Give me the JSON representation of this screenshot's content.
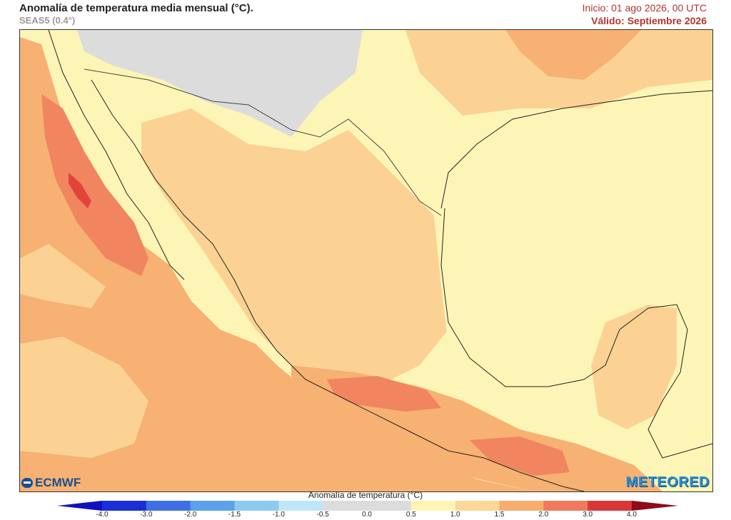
{
  "header": {
    "title": "Anomalía de temperatura media mensual (°C).",
    "model": "SEAS5 (0.4°)",
    "init": "Inicio: 01 ago 2026, 00 UTC",
    "valid": "Válido: Septiembre 2026"
  },
  "logos": {
    "left": "ECMWF",
    "right": "METEORED"
  },
  "legend": {
    "title": "Anomalía de temperatura (°C)",
    "ticks": [
      "-4.0",
      "-3.0",
      "-2.0",
      "-1.5",
      "-1.0",
      "-0.5",
      "0.0",
      "0.5",
      "1.0",
      "1.5",
      "2.0",
      "3.0",
      "4.0"
    ],
    "colors": [
      "#1b2fd6",
      "#3f6fe4",
      "#5aa2ea",
      "#8ccaf0",
      "#bfe6f6",
      "#dcdcdc",
      "#dcdcdc",
      "#fdf5b6",
      "#fbd897",
      "#f6ad6e",
      "#f07a5e",
      "#d9363a"
    ]
  }
}
